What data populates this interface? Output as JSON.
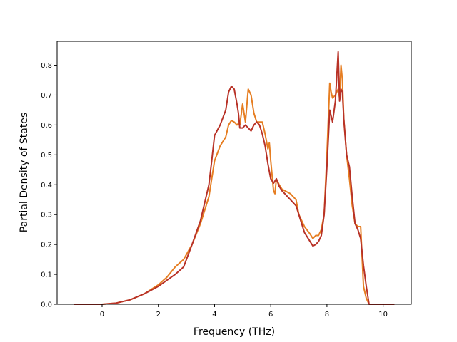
{
  "chart_data": {
    "type": "line",
    "title": "",
    "xlabel": "Frequency (THz)",
    "ylabel": "Partial Density of States",
    "xlim": [
      -1.6,
      11.0
    ],
    "ylim": [
      0.0,
      0.88
    ],
    "xticks": [
      0,
      2,
      4,
      6,
      8,
      10
    ],
    "yticks": [
      0.0,
      0.1,
      0.2,
      0.3,
      0.4,
      0.5,
      0.6,
      0.7,
      0.8
    ],
    "xtick_labels": [
      "0",
      "2",
      "4",
      "6",
      "8",
      "10"
    ],
    "ytick_labels": [
      "0.0",
      "0.1",
      "0.2",
      "0.3",
      "0.4",
      "0.5",
      "0.6",
      "0.7",
      "0.8"
    ],
    "grid": false,
    "legend": false,
    "series": [
      {
        "color": "#e67e22",
        "x": [
          -1.0,
          0.0,
          0.5,
          1.0,
          1.5,
          2.0,
          2.3,
          2.6,
          2.9,
          3.2,
          3.5,
          3.8,
          4.0,
          4.2,
          4.4,
          4.5,
          4.6,
          4.7,
          4.8,
          4.85,
          4.9,
          5.0,
          5.1,
          5.2,
          5.3,
          5.4,
          5.5,
          5.6,
          5.7,
          5.8,
          5.9,
          5.95,
          6.0,
          6.1,
          6.15,
          6.2,
          6.3,
          6.4,
          6.5,
          6.6,
          6.7,
          6.8,
          6.9,
          7.0,
          7.2,
          7.4,
          7.5,
          7.6,
          7.7,
          7.8,
          7.9,
          8.0,
          8.1,
          8.15,
          8.2,
          8.3,
          8.4,
          8.45,
          8.5,
          8.55,
          8.6,
          8.7,
          8.8,
          8.9,
          9.0,
          9.1,
          9.2,
          9.3,
          9.4,
          9.5,
          9.6,
          10.0,
          10.4
        ],
        "values": [
          0.0,
          0.0,
          0.004,
          0.015,
          0.035,
          0.065,
          0.09,
          0.125,
          0.15,
          0.2,
          0.27,
          0.36,
          0.48,
          0.53,
          0.56,
          0.6,
          0.615,
          0.61,
          0.6,
          0.605,
          0.6,
          0.67,
          0.61,
          0.72,
          0.7,
          0.64,
          0.61,
          0.61,
          0.61,
          0.57,
          0.52,
          0.54,
          0.48,
          0.38,
          0.37,
          0.42,
          0.4,
          0.385,
          0.38,
          0.375,
          0.37,
          0.36,
          0.35,
          0.3,
          0.26,
          0.235,
          0.22,
          0.23,
          0.23,
          0.25,
          0.3,
          0.5,
          0.74,
          0.71,
          0.69,
          0.7,
          0.72,
          0.69,
          0.8,
          0.75,
          0.62,
          0.5,
          0.42,
          0.33,
          0.27,
          0.26,
          0.26,
          0.06,
          0.02,
          0.0,
          0.0,
          0.0,
          0.0
        ]
      },
      {
        "color": "#b83227",
        "x": [
          -1.0,
          0.0,
          0.5,
          1.0,
          1.5,
          2.0,
          2.3,
          2.6,
          2.9,
          3.2,
          3.5,
          3.8,
          3.9,
          4.0,
          4.2,
          4.4,
          4.5,
          4.6,
          4.7,
          4.8,
          4.85,
          4.9,
          5.0,
          5.1,
          5.2,
          5.3,
          5.4,
          5.5,
          5.6,
          5.7,
          5.8,
          5.9,
          6.0,
          6.1,
          6.2,
          6.3,
          6.4,
          6.5,
          6.6,
          6.7,
          6.8,
          6.9,
          7.0,
          7.1,
          7.2,
          7.4,
          7.5,
          7.6,
          7.7,
          7.8,
          7.9,
          8.0,
          8.1,
          8.2,
          8.3,
          8.4,
          8.45,
          8.5,
          8.55,
          8.6,
          8.7,
          8.8,
          8.9,
          9.0,
          9.1,
          9.2,
          9.3,
          9.4,
          9.5,
          10.0,
          10.4
        ],
        "values": [
          0.0,
          0.0,
          0.004,
          0.015,
          0.035,
          0.06,
          0.08,
          0.1,
          0.125,
          0.2,
          0.28,
          0.4,
          0.48,
          0.565,
          0.6,
          0.65,
          0.71,
          0.73,
          0.72,
          0.67,
          0.64,
          0.59,
          0.59,
          0.6,
          0.59,
          0.58,
          0.6,
          0.61,
          0.6,
          0.57,
          0.53,
          0.47,
          0.42,
          0.405,
          0.42,
          0.395,
          0.38,
          0.37,
          0.36,
          0.35,
          0.34,
          0.33,
          0.3,
          0.27,
          0.24,
          0.21,
          0.195,
          0.2,
          0.21,
          0.23,
          0.3,
          0.46,
          0.65,
          0.61,
          0.68,
          0.845,
          0.68,
          0.72,
          0.71,
          0.62,
          0.5,
          0.46,
          0.36,
          0.27,
          0.25,
          0.22,
          0.13,
          0.06,
          0.0,
          0.0,
          0.0
        ]
      }
    ]
  }
}
